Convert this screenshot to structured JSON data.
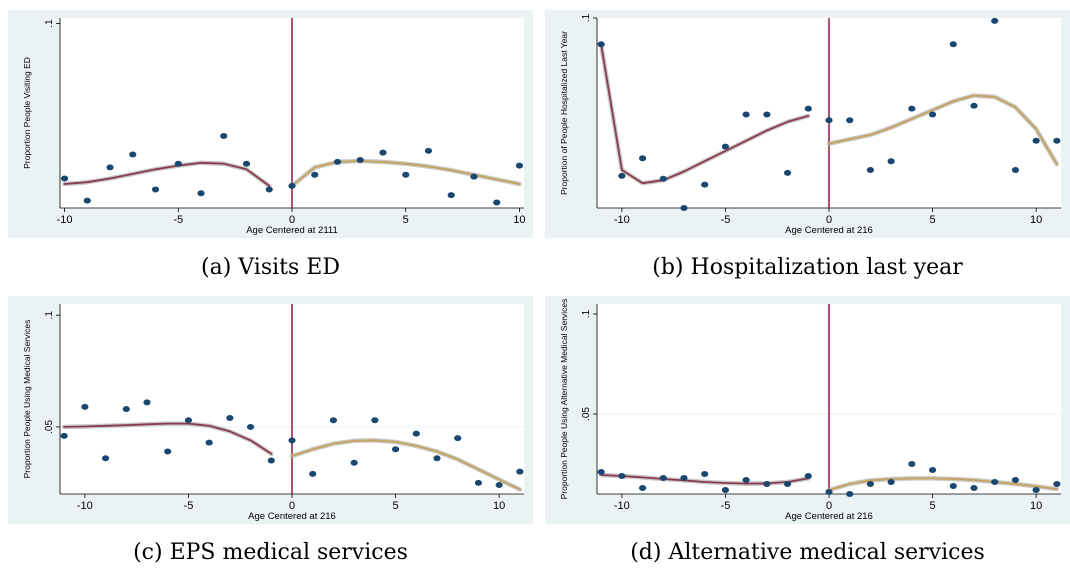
{
  "colors": {
    "panel_bg": "#eaf2f3",
    "plot_bg": "#ffffff",
    "grid": "#eaf2f3",
    "cutoff_line": "#8b1a3a",
    "left_fit": "#8a3a4a",
    "right_fit": "#c9a15a",
    "ci_band": "#b0b0b0",
    "marker": "#1a476f"
  },
  "figure": {
    "captions": [
      "(a) Visits ED",
      "(b) Hospitalization last year",
      "(c) EPS medical services",
      "(d) Alternative medical services"
    ]
  },
  "chart_data": [
    {
      "type": "scatter",
      "panel": "a",
      "ylabel": "Proportion People Visiting ED",
      "xlabel": "Age Centered at 2111",
      "xlim": [
        -10.2,
        10.2
      ],
      "ylim": [
        0,
        0.103
      ],
      "xticks": [
        -10,
        -5,
        0,
        5,
        10
      ],
      "xtick_labels": [
        "-10",
        "-5",
        "0",
        "5",
        "10"
      ],
      "yticks": [
        0.1
      ],
      "ytick_labels": [
        ".1"
      ],
      "grid_y": [],
      "cutoff": 0,
      "points": [
        [
          -10,
          0.016
        ],
        [
          -9,
          0.004
        ],
        [
          -8,
          0.022
        ],
        [
          -7,
          0.029
        ],
        [
          -6,
          0.01
        ],
        [
          -5,
          0.024
        ],
        [
          -4,
          0.008
        ],
        [
          -3,
          0.039
        ],
        [
          -2,
          0.024
        ],
        [
          -1,
          0.01
        ],
        [
          0,
          0.012
        ],
        [
          1,
          0.018
        ],
        [
          2,
          0.025
        ],
        [
          3,
          0.026
        ],
        [
          4,
          0.03
        ],
        [
          5,
          0.018
        ],
        [
          6,
          0.031
        ],
        [
          7,
          0.007
        ],
        [
          8,
          0.017
        ],
        [
          9,
          0.003
        ],
        [
          10,
          0.023
        ]
      ],
      "fit_left": [
        [
          -10,
          0.013
        ],
        [
          -9,
          0.014
        ],
        [
          -8,
          0.016
        ],
        [
          -7,
          0.0185
        ],
        [
          -6,
          0.021
        ],
        [
          -5,
          0.023
        ],
        [
          -4,
          0.0245
        ],
        [
          -3,
          0.024
        ],
        [
          -2,
          0.021
        ],
        [
          -1,
          0.012
        ]
      ],
      "fit_right": [
        [
          0,
          0.012
        ],
        [
          1,
          0.022
        ],
        [
          2,
          0.025
        ],
        [
          3,
          0.0255
        ],
        [
          4,
          0.025
        ],
        [
          5,
          0.024
        ],
        [
          6,
          0.0225
        ],
        [
          7,
          0.0205
        ],
        [
          8,
          0.018
        ],
        [
          9,
          0.0155
        ],
        [
          10,
          0.013
        ]
      ]
    },
    {
      "type": "scatter",
      "panel": "b",
      "ylabel": "Proportion of People Hospitalized Last Year",
      "xlabel": "Age Centered at 216",
      "xlim": [
        -11.2,
        11.2
      ],
      "ylim": [
        0.035,
        0.1
      ],
      "xticks": [
        -10,
        -5,
        0,
        5,
        10
      ],
      "xtick_labels": [
        "-10",
        "-5",
        "0",
        "5",
        "10"
      ],
      "yticks": [
        0.1
      ],
      "ytick_labels": [
        ".1"
      ],
      "grid_y": [],
      "cutoff": 0,
      "points": [
        [
          -11,
          0.091
        ],
        [
          -10,
          0.046
        ],
        [
          -9,
          0.052
        ],
        [
          -8,
          0.045
        ],
        [
          -7,
          0.035
        ],
        [
          -6,
          0.043
        ],
        [
          -5,
          0.056
        ],
        [
          -4,
          0.067
        ],
        [
          -3,
          0.067
        ],
        [
          -2,
          0.047
        ],
        [
          -1,
          0.069
        ],
        [
          0,
          0.065
        ],
        [
          1,
          0.065
        ],
        [
          2,
          0.048
        ],
        [
          3,
          0.051
        ],
        [
          4,
          0.069
        ],
        [
          5,
          0.067
        ],
        [
          6,
          0.091
        ],
        [
          7,
          0.07
        ],
        [
          8,
          0.099
        ],
        [
          9,
          0.048
        ],
        [
          10,
          0.058
        ],
        [
          11,
          0.058
        ]
      ],
      "fit_left": [
        [
          -11,
          0.091
        ],
        [
          -10,
          0.048
        ],
        [
          -9,
          0.0435
        ],
        [
          -8,
          0.0445
        ],
        [
          -7,
          0.0475
        ],
        [
          -6,
          0.051
        ],
        [
          -5,
          0.0545
        ],
        [
          -4,
          0.058
        ],
        [
          -3,
          0.0615
        ],
        [
          -2,
          0.0645
        ],
        [
          -1,
          0.0665
        ]
      ],
      "fit_right": [
        [
          0,
          0.057
        ],
        [
          1,
          0.0585
        ],
        [
          2,
          0.06
        ],
        [
          3,
          0.0625
        ],
        [
          4,
          0.0655
        ],
        [
          5,
          0.0685
        ],
        [
          6,
          0.0715
        ],
        [
          7,
          0.0735
        ],
        [
          8,
          0.073
        ],
        [
          9,
          0.0695
        ],
        [
          10,
          0.062
        ],
        [
          11,
          0.05
        ]
      ]
    },
    {
      "type": "scatter",
      "panel": "c",
      "ylabel": "Proportion People Using Medical Services",
      "xlabel": "Age Centered at 216",
      "xlim": [
        -11.2,
        11.2
      ],
      "ylim": [
        0.02,
        0.105
      ],
      "xticks": [
        -10,
        -5,
        0,
        5,
        10
      ],
      "xtick_labels": [
        "-10",
        "-5",
        "0",
        "5",
        "10"
      ],
      "yticks": [
        0.05,
        0.1
      ],
      "ytick_labels": [
        ".05",
        ".1"
      ],
      "grid_y": [
        0.05
      ],
      "cutoff": 0,
      "points": [
        [
          -11,
          0.046
        ],
        [
          -10,
          0.059
        ],
        [
          -9,
          0.036
        ],
        [
          -8,
          0.058
        ],
        [
          -7,
          0.061
        ],
        [
          -6,
          0.039
        ],
        [
          -5,
          0.053
        ],
        [
          -4,
          0.043
        ],
        [
          -3,
          0.054
        ],
        [
          -2,
          0.05
        ],
        [
          -1,
          0.035
        ],
        [
          0,
          0.044
        ],
        [
          1,
          0.029
        ],
        [
          2,
          0.053
        ],
        [
          3,
          0.034
        ],
        [
          4,
          0.053
        ],
        [
          5,
          0.04
        ],
        [
          6,
          0.047
        ],
        [
          7,
          0.036
        ],
        [
          8,
          0.045
        ],
        [
          9,
          0.025
        ],
        [
          10,
          0.024
        ],
        [
          11,
          0.03
        ]
      ],
      "fit_left": [
        [
          -11,
          0.05
        ],
        [
          -10,
          0.0502
        ],
        [
          -9,
          0.0505
        ],
        [
          -8,
          0.0508
        ],
        [
          -7,
          0.0512
        ],
        [
          -6,
          0.0515
        ],
        [
          -5,
          0.0515
        ],
        [
          -4,
          0.0505
        ],
        [
          -3,
          0.048
        ],
        [
          -2,
          0.044
        ],
        [
          -1,
          0.038
        ]
      ],
      "fit_right": [
        [
          0,
          0.037
        ],
        [
          1,
          0.04
        ],
        [
          2,
          0.0425
        ],
        [
          3,
          0.0438
        ],
        [
          4,
          0.044
        ],
        [
          5,
          0.0433
        ],
        [
          6,
          0.0415
        ],
        [
          7,
          0.039
        ],
        [
          8,
          0.0355
        ],
        [
          9,
          0.031
        ],
        [
          10,
          0.0265
        ],
        [
          11,
          0.022
        ]
      ]
    },
    {
      "type": "scatter",
      "panel": "d",
      "ylabel": "Proportion People Using Alternative Medical Services",
      "xlabel": "Age Centered at 216",
      "xlim": [
        -11.2,
        11.2
      ],
      "ylim": [
        0.01,
        0.105
      ],
      "xticks": [
        -10,
        -5,
        0,
        5,
        10
      ],
      "xtick_labels": [
        "-10",
        "-5",
        "0",
        "5",
        "10"
      ],
      "yticks": [
        0.05,
        0.1
      ],
      "ytick_labels": [
        ".05",
        ".1"
      ],
      "grid_y": [
        0.05
      ],
      "cutoff": 0,
      "points": [
        [
          -11,
          0.021
        ],
        [
          -10,
          0.019
        ],
        [
          -9,
          0.013
        ],
        [
          -8,
          0.018
        ],
        [
          -7,
          0.018
        ],
        [
          -6,
          0.02
        ],
        [
          -5,
          0.012
        ],
        [
          -4,
          0.017
        ],
        [
          -3,
          0.015
        ],
        [
          -2,
          0.015
        ],
        [
          -1,
          0.019
        ],
        [
          0,
          0.011
        ],
        [
          1,
          0.01
        ],
        [
          2,
          0.015
        ],
        [
          3,
          0.016
        ],
        [
          4,
          0.025
        ],
        [
          5,
          0.022
        ],
        [
          6,
          0.014
        ],
        [
          7,
          0.013
        ],
        [
          8,
          0.016
        ],
        [
          9,
          0.017
        ],
        [
          10,
          0.012
        ],
        [
          11,
          0.015
        ]
      ],
      "fit_left": [
        [
          -11,
          0.0195
        ],
        [
          -10,
          0.019
        ],
        [
          -9,
          0.0183
        ],
        [
          -8,
          0.0175
        ],
        [
          -7,
          0.0168
        ],
        [
          -6,
          0.016
        ],
        [
          -5,
          0.0155
        ],
        [
          -4,
          0.0152
        ],
        [
          -3,
          0.0153
        ],
        [
          -2,
          0.016
        ],
        [
          -1,
          0.0178
        ]
      ],
      "fit_right": [
        [
          0,
          0.012
        ],
        [
          1,
          0.015
        ],
        [
          2,
          0.0168
        ],
        [
          3,
          0.0175
        ],
        [
          4,
          0.0178
        ],
        [
          5,
          0.0178
        ],
        [
          6,
          0.0175
        ],
        [
          7,
          0.017
        ],
        [
          8,
          0.016
        ],
        [
          9,
          0.015
        ],
        [
          10,
          0.0138
        ],
        [
          11,
          0.0125
        ]
      ]
    }
  ]
}
